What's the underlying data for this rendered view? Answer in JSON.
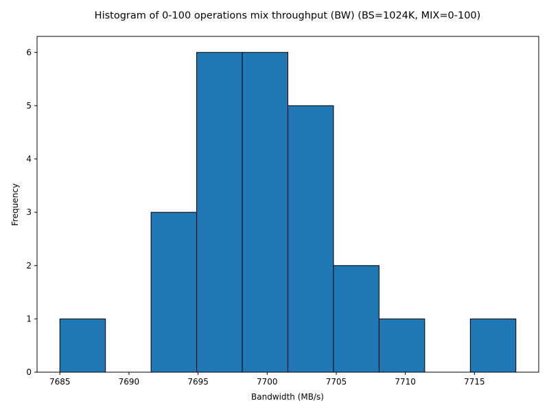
{
  "chart_data": {
    "type": "bar",
    "title": "Histogram of 0-100 operations mix throughput (BW) (BS=1024K, MIX=0-100)",
    "xlabel": "Bandwidth (MB/s)",
    "ylabel": "Frequency",
    "xlim": [
      7683.35,
      7719.65
    ],
    "ylim": [
      0,
      6.3
    ],
    "xticks": [
      7685,
      7690,
      7695,
      7700,
      7705,
      7710,
      7715
    ],
    "yticks": [
      0,
      1,
      2,
      3,
      4,
      5,
      6
    ],
    "bin_edges": [
      7685.0,
      7688.3,
      7691.6,
      7694.9,
      7698.2,
      7701.5,
      7704.8,
      7708.1,
      7711.4,
      7714.7,
      7718.0
    ],
    "counts": [
      1,
      0,
      3,
      6,
      6,
      5,
      2,
      1,
      0,
      1
    ],
    "bar_color": "#1f77b4",
    "edge_color": "#000000",
    "grid": false
  }
}
